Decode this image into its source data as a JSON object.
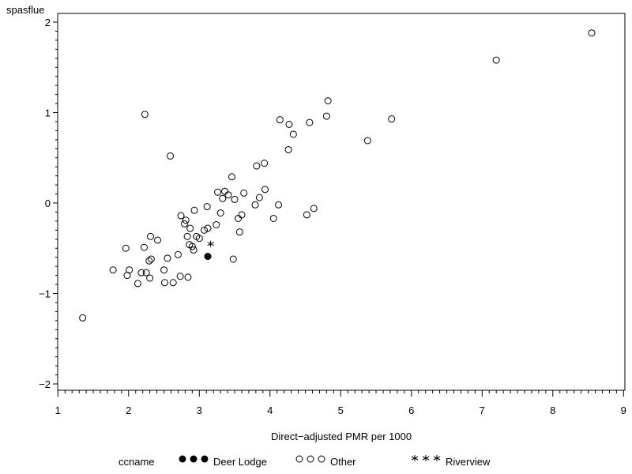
{
  "chart_data": {
    "type": "scatter",
    "title": "",
    "xlabel": "Direct−adjusted PMR per 1000",
    "ylabel": "spasflue",
    "xlim": [
      1,
      9
    ],
    "ylim": [
      -2,
      2
    ],
    "xticks": [
      "1",
      "2",
      "3",
      "4",
      "5",
      "6",
      "7",
      "8",
      "9"
    ],
    "yticks": [
      "2",
      "1",
      "0",
      "−1",
      "−2"
    ],
    "grid": false,
    "legend_position": "bottom",
    "legend": {
      "title": "ccname",
      "entries": [
        {
          "name": "Deer Lodge",
          "marker": "dot",
          "symbols": "●●●"
        },
        {
          "name": "Other",
          "marker": "circle",
          "symbols": "○○○"
        },
        {
          "name": "Riverview",
          "marker": "star",
          "symbols": "***"
        }
      ]
    },
    "series": [
      {
        "name": "Deer Lodge",
        "marker": "dot",
        "points": [
          [
            3.12,
            -0.59
          ]
        ]
      },
      {
        "name": "Riverview",
        "marker": "star",
        "points": [
          [
            3.16,
            -0.46
          ]
        ]
      },
      {
        "name": "Other",
        "marker": "circle",
        "points": [
          [
            1.35,
            -1.27
          ],
          [
            1.78,
            -0.74
          ],
          [
            1.96,
            -0.5
          ],
          [
            1.98,
            -0.8
          ],
          [
            2.01,
            -0.74
          ],
          [
            2.13,
            -0.89
          ],
          [
            2.18,
            -0.77
          ],
          [
            2.22,
            -0.49
          ],
          [
            2.25,
            -0.77
          ],
          [
            2.23,
            0.98
          ],
          [
            2.29,
            -0.64
          ],
          [
            2.3,
            -0.83
          ],
          [
            2.31,
            -0.37
          ],
          [
            2.32,
            -0.62
          ],
          [
            2.41,
            -0.41
          ],
          [
            2.5,
            -0.74
          ],
          [
            2.51,
            -0.88
          ],
          [
            2.55,
            -0.61
          ],
          [
            2.59,
            0.52
          ],
          [
            2.63,
            -0.88
          ],
          [
            2.7,
            -0.57
          ],
          [
            2.73,
            -0.81
          ],
          [
            2.74,
            -0.14
          ],
          [
            2.79,
            -0.23
          ],
          [
            2.81,
            -0.19
          ],
          [
            2.83,
            -0.37
          ],
          [
            2.84,
            -0.82
          ],
          [
            2.86,
            -0.46
          ],
          [
            2.87,
            -0.28
          ],
          [
            2.9,
            -0.48
          ],
          [
            2.92,
            -0.52
          ],
          [
            2.93,
            -0.08
          ],
          [
            2.96,
            -0.37
          ],
          [
            3.0,
            -0.39
          ],
          [
            3.07,
            -0.3
          ],
          [
            3.11,
            -0.04
          ],
          [
            3.12,
            -0.28
          ],
          [
            3.24,
            -0.24
          ],
          [
            3.26,
            0.12
          ],
          [
            3.3,
            -0.11
          ],
          [
            3.33,
            0.05
          ],
          [
            3.36,
            0.13
          ],
          [
            3.41,
            0.09
          ],
          [
            3.46,
            0.29
          ],
          [
            3.48,
            -0.62
          ],
          [
            3.5,
            0.04
          ],
          [
            3.55,
            -0.17
          ],
          [
            3.57,
            -0.32
          ],
          [
            3.6,
            -0.13
          ],
          [
            3.63,
            0.11
          ],
          [
            3.79,
            -0.02
          ],
          [
            3.81,
            0.41
          ],
          [
            3.85,
            0.06
          ],
          [
            3.92,
            0.44
          ],
          [
            3.93,
            0.15
          ],
          [
            4.05,
            -0.17
          ],
          [
            4.12,
            -0.02
          ],
          [
            4.14,
            0.92
          ],
          [
            4.26,
            0.59
          ],
          [
            4.27,
            0.87
          ],
          [
            4.33,
            0.76
          ],
          [
            4.52,
            -0.13
          ],
          [
            4.56,
            0.89
          ],
          [
            4.62,
            -0.06
          ],
          [
            4.8,
            0.96
          ],
          [
            4.82,
            1.13
          ],
          [
            5.38,
            0.69
          ],
          [
            5.72,
            0.93
          ],
          [
            7.2,
            1.58
          ],
          [
            8.55,
            1.88
          ]
        ]
      }
    ]
  }
}
